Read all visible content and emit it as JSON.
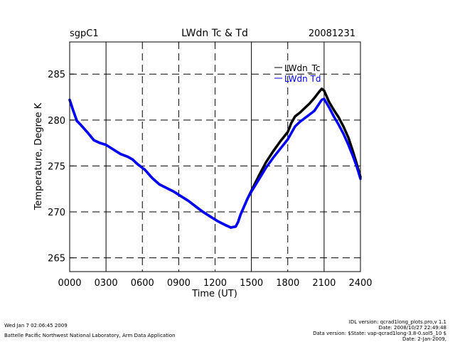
{
  "header": {
    "site": "sgpC1",
    "title": "LWdn Tc & Td",
    "date": "20081231"
  },
  "footer": {
    "left_line1": "Wed Jan  7 02:06:45 2009",
    "left_line2": "Battelle Pacific Northwest National Laboratory, Arm Data Application",
    "right_line1": "IDL version: qcrad1long_plots.pro,v 1.1",
    "right_line2": "Date: 2008/10/27 22:49:48",
    "right_line3": "Data version: $State: vap-qcrad1long-3.8-0.sol5_10 $",
    "right_line4": "Date: 2-Jan-2009,"
  },
  "chart_data": {
    "type": "line",
    "title": "LWdn Tc & Td",
    "xlabel": "Time (UT)",
    "ylabel": "Temperature, Degree K",
    "xlim": [
      0,
      2400
    ],
    "ylim": [
      263.5,
      288.5
    ],
    "x_ticks": [
      0,
      300,
      600,
      900,
      1200,
      1500,
      1800,
      2100,
      2400
    ],
    "x_tick_labels": [
      "0000",
      "0300",
      "0600",
      "0900",
      "1200",
      "1500",
      "1800",
      "2100",
      "2400"
    ],
    "y_ticks": [
      265,
      270,
      275,
      280,
      285
    ],
    "y_tick_labels": [
      "265",
      "270",
      "275",
      "280",
      "285"
    ],
    "grid": true,
    "legend_position": "top-right",
    "series": [
      {
        "name": "LWdn_Tc",
        "color": "#000000",
        "x": [
          0,
          30,
          60,
          90,
          150,
          200,
          250,
          300,
          360,
          420,
          480,
          520,
          560,
          620,
          680,
          740,
          800,
          860,
          920,
          980,
          1040,
          1100,
          1160,
          1220,
          1280,
          1330,
          1370,
          1390,
          1410,
          1440,
          1470,
          1500,
          1560,
          1620,
          1680,
          1740,
          1800,
          1830,
          1860,
          1900,
          1940,
          1980,
          2020,
          2060,
          2080,
          2100,
          2140,
          2180,
          2220,
          2260,
          2300,
          2340,
          2370,
          2400
        ],
        "y": [
          282.2,
          281.0,
          279.9,
          279.5,
          278.6,
          277.8,
          277.5,
          277.3,
          276.8,
          276.3,
          276.0,
          275.7,
          275.2,
          274.6,
          273.7,
          273.0,
          272.6,
          272.2,
          271.7,
          271.2,
          270.6,
          270.0,
          269.5,
          269.0,
          268.6,
          268.3,
          268.4,
          268.9,
          269.7,
          270.6,
          271.5,
          272.3,
          273.9,
          275.4,
          276.6,
          277.7,
          278.7,
          279.7,
          280.4,
          280.8,
          281.3,
          281.8,
          282.4,
          283.1,
          283.4,
          283.2,
          282.0,
          281.1,
          280.3,
          279.3,
          278.1,
          276.5,
          275.2,
          273.8
        ]
      },
      {
        "name": "LWdn Td",
        "color": "#0000ff",
        "x": [
          0,
          30,
          60,
          90,
          150,
          200,
          250,
          300,
          360,
          420,
          480,
          520,
          560,
          620,
          680,
          740,
          800,
          860,
          920,
          980,
          1040,
          1100,
          1160,
          1220,
          1280,
          1330,
          1370,
          1390,
          1410,
          1440,
          1470,
          1500,
          1560,
          1620,
          1680,
          1740,
          1800,
          1830,
          1860,
          1900,
          1940,
          1980,
          2020,
          2060,
          2080,
          2100,
          2140,
          2180,
          2220,
          2260,
          2300,
          2340,
          2370,
          2400
        ],
        "y": [
          282.2,
          281.0,
          279.9,
          279.5,
          278.6,
          277.8,
          277.5,
          277.3,
          276.8,
          276.3,
          276.0,
          275.7,
          275.2,
          274.6,
          273.7,
          273.0,
          272.6,
          272.2,
          271.7,
          271.2,
          270.6,
          270.0,
          269.5,
          269.0,
          268.6,
          268.3,
          268.4,
          268.9,
          269.7,
          270.6,
          271.5,
          272.2,
          273.5,
          274.8,
          275.9,
          276.9,
          277.9,
          278.6,
          279.3,
          279.8,
          280.2,
          280.6,
          281.0,
          281.8,
          282.2,
          282.3,
          281.4,
          280.4,
          279.5,
          278.5,
          277.3,
          276.0,
          274.9,
          273.6
        ]
      }
    ]
  }
}
